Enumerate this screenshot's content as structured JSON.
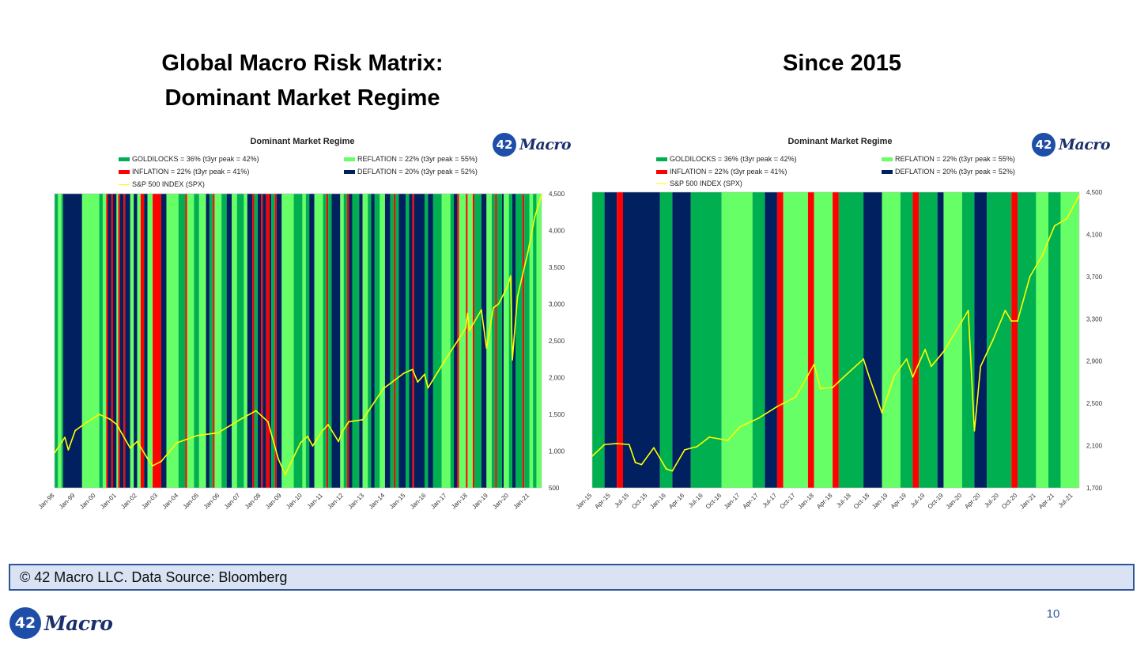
{
  "slide": {
    "title_left_line1": "Global Macro Risk Matrix:",
    "title_left_line2": "Dominant Market Regime",
    "title_right": "Since 2015",
    "source": "© 42 Macro LLC. Data Source: Bloomberg",
    "page_number": "10",
    "logo_number": "42",
    "logo_text": "Macro"
  },
  "colors": {
    "goldilocks": "#00b050",
    "reflation": "#66ff66",
    "inflation": "#ff0000",
    "deflation": "#002060",
    "spx_line": "#ffff00",
    "logo_blue": "#1f4ea8"
  },
  "legend": {
    "goldilocks": "GOLDILOCKS = 36% (t3yr peak = 42%)",
    "reflation": "REFLATION = 22% (t3yr peak = 55%)",
    "inflation": "INFLATION = 22% (t3yr peak = 41%)",
    "deflation": "DEFLATION = 20% (t3yr peak = 52%)",
    "spx": "S&P 500 INDEX (SPX)"
  },
  "chart_data": [
    {
      "type": "area",
      "title": "Dominant Market Regime",
      "x_start": "Jan-98",
      "x_end": "Aug-21",
      "x_tick_labels": [
        "Jan-98",
        "Jan-99",
        "Jan-00",
        "Jan-01",
        "Jan-02",
        "Jan-03",
        "Jan-04",
        "Jan-05",
        "Jan-06",
        "Jan-07",
        "Jan-08",
        "Jan-09",
        "Jan-10",
        "Jan-11",
        "Jan-12",
        "Jan-13",
        "Jan-14",
        "Jan-15",
        "Jan-16",
        "Jan-17",
        "Jan-18",
        "Jan-19",
        "Jan-20",
        "Jan-21"
      ],
      "ylim": [
        500,
        4500
      ],
      "y_tick_labels": [
        "4,500",
        "4,000",
        "3,500",
        "3,000",
        "2,500",
        "2,000",
        "1,500",
        "1,000",
        "500"
      ],
      "regime_bands": [
        [
          "1998-01",
          "1998-03",
          "goldilocks"
        ],
        [
          "1998-03",
          "1998-05",
          "reflation"
        ],
        [
          "1998-05",
          "1998-06",
          "goldilocks"
        ],
        [
          "1998-06",
          "1999-05",
          "deflation"
        ],
        [
          "1999-05",
          "2000-03",
          "reflation"
        ],
        [
          "2000-03",
          "2000-05",
          "goldilocks"
        ],
        [
          "2000-05",
          "2000-07",
          "reflation"
        ],
        [
          "2000-07",
          "2000-08",
          "inflation"
        ],
        [
          "2000-08",
          "2000-10",
          "deflation"
        ],
        [
          "2000-10",
          "2000-11",
          "inflation"
        ],
        [
          "2000-11",
          "2001-01",
          "deflation"
        ],
        [
          "2001-01",
          "2001-02",
          "reflation"
        ],
        [
          "2001-02",
          "2001-03",
          "inflation"
        ],
        [
          "2001-03",
          "2001-05",
          "deflation"
        ],
        [
          "2001-05",
          "2001-06",
          "inflation"
        ],
        [
          "2001-06",
          "2001-09",
          "deflation"
        ],
        [
          "2001-09",
          "2001-11",
          "reflation"
        ],
        [
          "2001-11",
          "2002-01",
          "deflation"
        ],
        [
          "2002-01",
          "2002-03",
          "reflation"
        ],
        [
          "2002-03",
          "2002-05",
          "inflation"
        ],
        [
          "2002-05",
          "2002-07",
          "deflation"
        ],
        [
          "2002-07",
          "2002-10",
          "reflation"
        ],
        [
          "2002-10",
          "2003-03",
          "inflation"
        ],
        [
          "2003-03",
          "2003-06",
          "deflation"
        ],
        [
          "2003-06",
          "2004-01",
          "reflation"
        ],
        [
          "2004-01",
          "2004-05",
          "goldilocks"
        ],
        [
          "2004-05",
          "2004-06",
          "inflation"
        ],
        [
          "2004-06",
          "2004-10",
          "reflation"
        ],
        [
          "2004-10",
          "2005-01",
          "goldilocks"
        ],
        [
          "2005-01",
          "2005-05",
          "reflation"
        ],
        [
          "2005-05",
          "2005-07",
          "deflation"
        ],
        [
          "2005-07",
          "2005-09",
          "goldilocks"
        ],
        [
          "2005-09",
          "2005-10",
          "inflation"
        ],
        [
          "2005-10",
          "2006-02",
          "reflation"
        ],
        [
          "2006-02",
          "2006-05",
          "goldilocks"
        ],
        [
          "2006-05",
          "2006-08",
          "deflation"
        ],
        [
          "2006-08",
          "2006-11",
          "reflation"
        ],
        [
          "2006-11",
          "2007-03",
          "goldilocks"
        ],
        [
          "2007-03",
          "2007-05",
          "reflation"
        ],
        [
          "2007-05",
          "2007-08",
          "deflation"
        ],
        [
          "2007-08",
          "2007-09",
          "inflation"
        ],
        [
          "2007-09",
          "2007-11",
          "goldilocks"
        ],
        [
          "2007-11",
          "2008-01",
          "deflation"
        ],
        [
          "2008-01",
          "2008-02",
          "inflation"
        ],
        [
          "2008-02",
          "2008-04",
          "deflation"
        ],
        [
          "2008-04",
          "2008-06",
          "inflation"
        ],
        [
          "2008-06",
          "2008-07",
          "deflation"
        ],
        [
          "2008-07",
          "2008-09",
          "goldilocks"
        ],
        [
          "2008-09",
          "2008-10",
          "inflation"
        ],
        [
          "2008-10",
          "2009-01",
          "deflation"
        ],
        [
          "2009-01",
          "2009-08",
          "reflation"
        ],
        [
          "2009-08",
          "2010-01",
          "goldilocks"
        ],
        [
          "2010-01",
          "2010-03",
          "reflation"
        ],
        [
          "2010-03",
          "2010-05",
          "goldilocks"
        ],
        [
          "2010-05",
          "2010-08",
          "deflation"
        ],
        [
          "2010-08",
          "2011-01",
          "reflation"
        ],
        [
          "2011-01",
          "2011-03",
          "goldilocks"
        ],
        [
          "2011-03",
          "2011-04",
          "inflation"
        ],
        [
          "2011-04",
          "2011-06",
          "goldilocks"
        ],
        [
          "2011-06",
          "2011-11",
          "deflation"
        ],
        [
          "2011-11",
          "2012-01",
          "reflation"
        ],
        [
          "2012-01",
          "2012-03",
          "goldilocks"
        ],
        [
          "2012-03",
          "2012-04",
          "inflation"
        ],
        [
          "2012-04",
          "2012-06",
          "deflation"
        ],
        [
          "2012-06",
          "2012-10",
          "goldilocks"
        ],
        [
          "2012-10",
          "2012-12",
          "deflation"
        ],
        [
          "2012-12",
          "2013-03",
          "reflation"
        ],
        [
          "2013-03",
          "2013-05",
          "goldilocks"
        ],
        [
          "2013-05",
          "2013-07",
          "deflation"
        ],
        [
          "2013-07",
          "2013-10",
          "goldilocks"
        ],
        [
          "2013-10",
          "2014-01",
          "reflation"
        ],
        [
          "2014-01",
          "2014-04",
          "deflation"
        ],
        [
          "2014-04",
          "2014-06",
          "goldilocks"
        ],
        [
          "2014-06",
          "2014-07",
          "inflation"
        ],
        [
          "2014-07",
          "2014-09",
          "goldilocks"
        ],
        [
          "2014-09",
          "2015-01",
          "deflation"
        ],
        [
          "2015-01",
          "2015-03",
          "goldilocks"
        ],
        [
          "2015-03",
          "2015-05",
          "deflation"
        ],
        [
          "2015-05",
          "2015-06",
          "inflation"
        ],
        [
          "2015-06",
          "2015-12",
          "deflation"
        ],
        [
          "2015-12",
          "2016-02",
          "goldilocks"
        ],
        [
          "2016-02",
          "2016-05",
          "deflation"
        ],
        [
          "2016-05",
          "2016-10",
          "goldilocks"
        ],
        [
          "2016-10",
          "2017-03",
          "reflation"
        ],
        [
          "2017-03",
          "2017-05",
          "goldilocks"
        ],
        [
          "2017-05",
          "2017-07",
          "deflation"
        ],
        [
          "2017-07",
          "2017-08",
          "inflation"
        ],
        [
          "2017-08",
          "2017-12",
          "reflation"
        ],
        [
          "2017-12",
          "2018-01",
          "inflation"
        ],
        [
          "2018-01",
          "2018-04",
          "reflation"
        ],
        [
          "2018-04",
          "2018-05",
          "inflation"
        ],
        [
          "2018-05",
          "2018-09",
          "goldilocks"
        ],
        [
          "2018-09",
          "2018-12",
          "deflation"
        ],
        [
          "2018-12",
          "2019-03",
          "reflation"
        ],
        [
          "2019-03",
          "2019-05",
          "goldilocks"
        ],
        [
          "2019-05",
          "2019-06",
          "inflation"
        ],
        [
          "2019-06",
          "2019-09",
          "goldilocks"
        ],
        [
          "2019-09",
          "2019-10",
          "deflation"
        ],
        [
          "2019-10",
          "2020-01",
          "reflation"
        ],
        [
          "2020-01",
          "2020-03",
          "goldilocks"
        ],
        [
          "2020-03",
          "2020-05",
          "deflation"
        ],
        [
          "2020-05",
          "2020-09",
          "goldilocks"
        ],
        [
          "2020-09",
          "2020-10",
          "inflation"
        ],
        [
          "2020-10",
          "2021-01",
          "goldilocks"
        ],
        [
          "2021-01",
          "2021-03",
          "reflation"
        ],
        [
          "2021-03",
          "2021-05",
          "goldilocks"
        ],
        [
          "2021-05",
          "2021-08",
          "reflation"
        ]
      ],
      "series": [
        {
          "name": "S&P 500 INDEX (SPX)",
          "x": [
            "1998-01",
            "1998-07",
            "1998-09",
            "1999-01",
            "1999-07",
            "2000-03",
            "2000-09",
            "2001-01",
            "2001-09",
            "2002-01",
            "2002-07",
            "2002-10",
            "2003-03",
            "2003-12",
            "2004-12",
            "2005-12",
            "2006-12",
            "2007-10",
            "2008-05",
            "2008-11",
            "2009-03",
            "2009-12",
            "2010-04",
            "2010-07",
            "2010-12",
            "2011-04",
            "2011-10",
            "2011-12",
            "2012-04",
            "2012-12",
            "2013-12",
            "2014-12",
            "2015-05",
            "2015-08",
            "2015-12",
            "2016-02",
            "2016-12",
            "2017-12",
            "2018-01",
            "2018-02",
            "2018-09",
            "2018-12",
            "2019-04",
            "2019-07",
            "2019-12",
            "2020-02",
            "2020-03",
            "2020-06",
            "2020-12",
            "2021-04",
            "2021-08"
          ],
          "values": [
            975,
            1186,
            1017,
            1279,
            1380,
            1499,
            1436,
            1366,
            1040,
            1130,
            900,
            800,
            860,
            1112,
            1212,
            1248,
            1418,
            1549,
            1400,
            896,
            680,
            1115,
            1200,
            1070,
            1258,
            1360,
            1130,
            1258,
            1400,
            1426,
            1848,
            2059,
            2110,
            1940,
            2044,
            1860,
            2239,
            2674,
            2870,
            2640,
            2920,
            2400,
            2950,
            3000,
            3230,
            3380,
            2240,
            3100,
            3700,
            4180,
            4480
          ]
        }
      ]
    },
    {
      "type": "area",
      "title": "Dominant Market Regime",
      "x_start": "Jan-15",
      "x_end": "Aug-21",
      "x_tick_labels": [
        "Jan-15",
        "Apr-15",
        "Jul-15",
        "Oct-15",
        "Jan-16",
        "Apr-16",
        "Jul-16",
        "Oct-16",
        "Jan-17",
        "Apr-17",
        "Jul-17",
        "Oct-17",
        "Jan-18",
        "Apr-18",
        "Jul-18",
        "Oct-18",
        "Jan-19",
        "Apr-19",
        "Jul-19",
        "Oct-19",
        "Jan-20",
        "Apr-20",
        "Jul-20",
        "Oct-20",
        "Jan-21",
        "Apr-21",
        "Jul-21"
      ],
      "ylim": [
        1700,
        4500
      ],
      "y_tick_labels": [
        "4,500",
        "4,100",
        "3,700",
        "3,300",
        "2,900",
        "2,500",
        "2,100",
        "1,700"
      ],
      "regime_bands": [
        [
          "2015-01",
          "2015-03",
          "goldilocks"
        ],
        [
          "2015-03",
          "2015-05",
          "deflation"
        ],
        [
          "2015-05",
          "2015-06",
          "inflation"
        ],
        [
          "2015-06",
          "2015-12",
          "deflation"
        ],
        [
          "2015-12",
          "2016-02",
          "goldilocks"
        ],
        [
          "2016-02",
          "2016-05",
          "deflation"
        ],
        [
          "2016-05",
          "2016-10",
          "goldilocks"
        ],
        [
          "2016-10",
          "2017-03",
          "reflation"
        ],
        [
          "2017-03",
          "2017-05",
          "goldilocks"
        ],
        [
          "2017-05",
          "2017-07",
          "deflation"
        ],
        [
          "2017-07",
          "2017-08",
          "inflation"
        ],
        [
          "2017-08",
          "2017-12",
          "reflation"
        ],
        [
          "2017-12",
          "2018-01",
          "inflation"
        ],
        [
          "2018-01",
          "2018-04",
          "reflation"
        ],
        [
          "2018-04",
          "2018-05",
          "inflation"
        ],
        [
          "2018-05",
          "2018-09",
          "goldilocks"
        ],
        [
          "2018-09",
          "2018-12",
          "deflation"
        ],
        [
          "2018-12",
          "2019-03",
          "reflation"
        ],
        [
          "2019-03",
          "2019-05",
          "goldilocks"
        ],
        [
          "2019-05",
          "2019-06",
          "inflation"
        ],
        [
          "2019-06",
          "2019-09",
          "goldilocks"
        ],
        [
          "2019-09",
          "2019-10",
          "deflation"
        ],
        [
          "2019-10",
          "2020-01",
          "reflation"
        ],
        [
          "2020-01",
          "2020-03",
          "goldilocks"
        ],
        [
          "2020-03",
          "2020-05",
          "deflation"
        ],
        [
          "2020-05",
          "2020-09",
          "goldilocks"
        ],
        [
          "2020-09",
          "2020-10",
          "inflation"
        ],
        [
          "2020-10",
          "2021-01",
          "goldilocks"
        ],
        [
          "2021-01",
          "2021-03",
          "reflation"
        ],
        [
          "2021-03",
          "2021-05",
          "goldilocks"
        ],
        [
          "2021-05",
          "2021-08",
          "reflation"
        ]
      ],
      "series": [
        {
          "name": "S&P 500 INDEX (SPX)",
          "x": [
            "2015-01",
            "2015-03",
            "2015-05",
            "2015-07",
            "2015-08",
            "2015-09",
            "2015-11",
            "2016-01",
            "2016-02",
            "2016-04",
            "2016-06",
            "2016-08",
            "2016-11",
            "2017-01",
            "2017-04",
            "2017-07",
            "2017-10",
            "2018-01",
            "2018-02",
            "2018-04",
            "2018-06",
            "2018-09",
            "2018-10",
            "2018-12",
            "2019-02",
            "2019-04",
            "2019-05",
            "2019-07",
            "2019-08",
            "2019-10",
            "2020-01",
            "2020-02",
            "2020-03",
            "2020-04",
            "2020-06",
            "2020-08",
            "2020-09",
            "2020-10",
            "2020-12",
            "2021-02",
            "2021-04",
            "2021-06",
            "2021-08"
          ],
          "values": [
            2000,
            2110,
            2120,
            2110,
            1940,
            1920,
            2080,
            1880,
            1860,
            2060,
            2090,
            2180,
            2150,
            2280,
            2360,
            2470,
            2560,
            2870,
            2640,
            2650,
            2760,
            2920,
            2740,
            2410,
            2760,
            2920,
            2750,
            3010,
            2850,
            2990,
            3280,
            3380,
            2240,
            2850,
            3100,
            3380,
            3280,
            3280,
            3700,
            3900,
            4180,
            4250,
            4470
          ]
        }
      ]
    }
  ]
}
